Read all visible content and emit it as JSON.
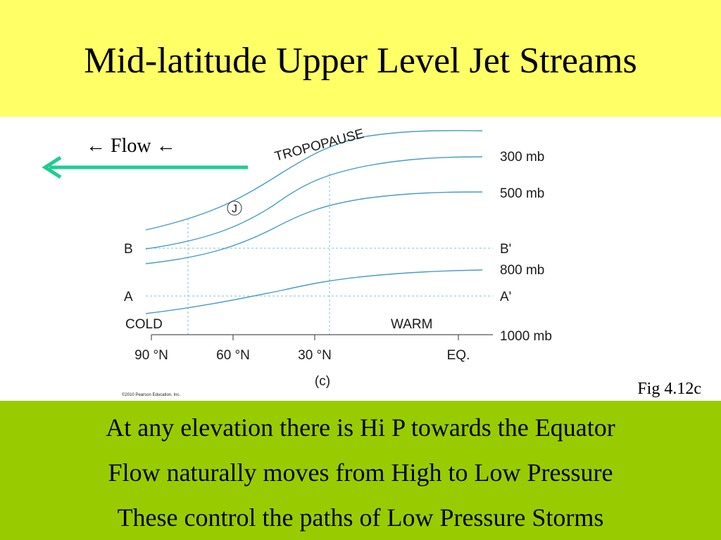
{
  "title": "Mid-latitude Upper Level Jet Streams",
  "flow_label": "← Flow ←",
  "figure": {
    "tropopause_label": "TROPOPAUSE",
    "jet_marker": "J",
    "pressure_levels": [
      "300 mb",
      "500 mb",
      "800 mb",
      "1000 mb"
    ],
    "section_labels": {
      "b_left": "B",
      "b_right": "B'",
      "a_left": "A",
      "a_right": "A'"
    },
    "zone_labels": {
      "cold": "COLD",
      "warm": "WARM"
    },
    "latitude_ticks": [
      "90 °N",
      "60 °N",
      "30 °N",
      "EQ."
    ],
    "panel_label": "(c)",
    "copyright": "©2010 Pearson Education, Inc.",
    "caption": "Fig 4.12c",
    "colors": {
      "isobar": "#4a9cc4",
      "arrow": "#1ccf8f",
      "guide": "#7fc0dc"
    }
  },
  "footer": {
    "lines": [
      "At any elevation there is Hi P towards the Equator",
      "Flow naturally moves from High to Low Pressure",
      "These control the paths of Low Pressure Storms"
    ]
  }
}
